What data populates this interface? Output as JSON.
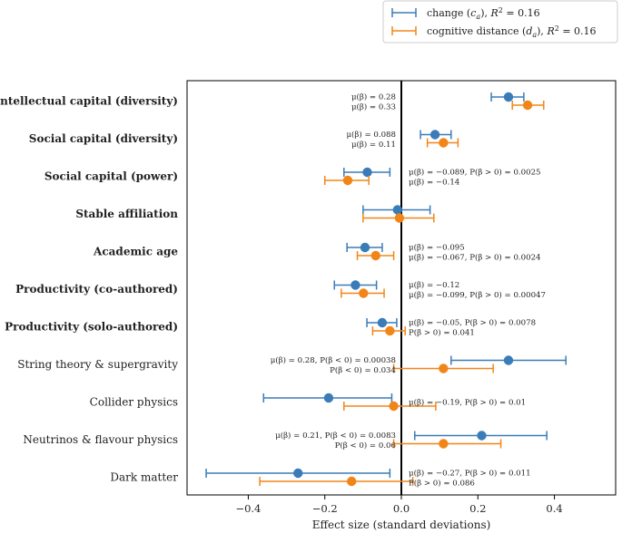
{
  "chart_data": {
    "type": "scatter",
    "title": "",
    "xlabel": "Effect size (standard deviations)",
    "ylabel": "",
    "xlim": [
      -0.56,
      0.56
    ],
    "xticks": [
      -0.4,
      -0.2,
      0.0,
      0.2,
      0.4
    ],
    "xtick_labels": [
      "−0.4",
      "−0.2",
      "0.0",
      "0.2",
      "0.4"
    ],
    "zero_line": 0.0,
    "grid": false,
    "legend_position": "top-right",
    "categories": [
      {
        "label": "Intellectual capital (diversity)",
        "bold": true
      },
      {
        "label": "Social capital (diversity)",
        "bold": true
      },
      {
        "label": "Social capital (power)",
        "bold": true
      },
      {
        "label": "Stable affiliation",
        "bold": true
      },
      {
        "label": "Academic age",
        "bold": true
      },
      {
        "label": "Productivity (co-authored)",
        "bold": true
      },
      {
        "label": "Productivity (solo-authored)",
        "bold": true
      },
      {
        "label": "String theory & supergravity",
        "bold": false
      },
      {
        "label": "Collider physics",
        "bold": false
      },
      {
        "label": "Neutrinos & flavour physics",
        "bold": false
      },
      {
        "label": "Dark matter",
        "bold": false
      }
    ],
    "series": [
      {
        "name": "change (c_a), R² = 0.16",
        "legend_prefix": "change (",
        "legend_var": "c",
        "legend_sub": "a",
        "legend_suffix": "), ",
        "legend_r2": "= 0.16",
        "color": "#3a7cb8",
        "values": [
          {
            "mean": 0.28,
            "low": 0.235,
            "high": 0.32
          },
          {
            "mean": 0.088,
            "low": 0.05,
            "high": 0.13
          },
          {
            "mean": -0.089,
            "low": -0.15,
            "high": -0.03
          },
          {
            "mean": -0.01,
            "low": -0.1,
            "high": 0.075
          },
          {
            "mean": -0.095,
            "low": -0.142,
            "high": -0.05
          },
          {
            "mean": -0.12,
            "low": -0.175,
            "high": -0.065
          },
          {
            "mean": -0.05,
            "low": -0.09,
            "high": -0.012
          },
          {
            "mean": 0.28,
            "low": 0.13,
            "high": 0.43
          },
          {
            "mean": -0.19,
            "low": -0.36,
            "high": -0.025
          },
          {
            "mean": 0.21,
            "low": 0.035,
            "high": 0.38
          },
          {
            "mean": -0.27,
            "low": -0.51,
            "high": -0.03
          }
        ]
      },
      {
        "name": "cognitive distance (d_a), R² = 0.16",
        "legend_prefix": "cognitive distance (",
        "legend_var": "d",
        "legend_sub": "a",
        "legend_suffix": "), ",
        "legend_r2": "= 0.16",
        "color": "#f28518",
        "values": [
          {
            "mean": 0.33,
            "low": 0.29,
            "high": 0.372
          },
          {
            "mean": 0.11,
            "low": 0.068,
            "high": 0.148
          },
          {
            "mean": -0.14,
            "low": -0.2,
            "high": -0.085
          },
          {
            "mean": -0.005,
            "low": -0.1,
            "high": 0.085
          },
          {
            "mean": -0.067,
            "low": -0.115,
            "high": -0.02
          },
          {
            "mean": -0.099,
            "low": -0.157,
            "high": -0.045
          },
          {
            "mean": -0.03,
            "low": -0.075,
            "high": 0.01
          },
          {
            "mean": 0.11,
            "low": -0.02,
            "high": 0.24
          },
          {
            "mean": -0.02,
            "low": -0.15,
            "high": 0.09
          },
          {
            "mean": 0.11,
            "low": -0.02,
            "high": 0.26
          },
          {
            "mean": -0.13,
            "low": -0.37,
            "high": 0.03
          }
        ]
      }
    ],
    "annotations": [
      {
        "side": "left",
        "lines": [
          "μ(β) = 0.28",
          "μ(β) = 0.33"
        ]
      },
      {
        "side": "left",
        "lines": [
          "μ(β) = 0.088",
          "μ(β) = 0.11"
        ]
      },
      {
        "side": "right",
        "lines": [
          "μ(β) = −0.089, P(β > 0) = 0.0025",
          "μ(β) = −0.14"
        ]
      },
      {
        "side": "none",
        "lines": []
      },
      {
        "side": "right",
        "lines": [
          "μ(β) = −0.095",
          "μ(β) = −0.067, P(β > 0) = 0.0024"
        ]
      },
      {
        "side": "right",
        "lines": [
          "μ(β) = −0.12",
          "μ(β) = −0.099, P(β > 0) = 0.00047"
        ]
      },
      {
        "side": "right",
        "lines": [
          "μ(β) = −0.05, P(β > 0) = 0.0078",
          "P(β > 0) = 0.041"
        ]
      },
      {
        "side": "left",
        "lines": [
          "μ(β) = 0.28, P(β < 0) = 0.00038",
          "P(β < 0) = 0.034"
        ]
      },
      {
        "side": "right",
        "lines": [
          "μ(β) = −0.19, P(β > 0) = 0.01"
        ]
      },
      {
        "side": "left",
        "lines": [
          "μ(β) = 0.21, P(β < 0) = 0.0083",
          "P(β < 0) = 0.06"
        ]
      },
      {
        "side": "right",
        "lines": [
          "μ(β) = −0.27, P(β > 0) = 0.011",
          "P(β > 0) = 0.086"
        ]
      }
    ]
  }
}
